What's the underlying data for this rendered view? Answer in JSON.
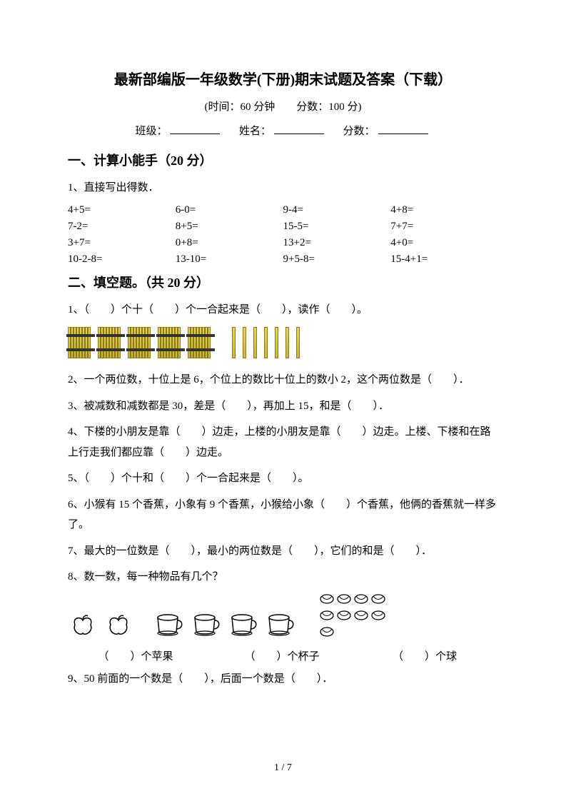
{
  "title": "最新部编版一年级数学(下册)期末试题及答案（下载）",
  "subtitle": "(时间：60 分钟　　分数：100 分)",
  "info": {
    "class_label": "班级：",
    "name_label": "姓名：",
    "score_label": "分数："
  },
  "section1": {
    "heading": "一、计算小能手（20 分）",
    "q1": "1、直接写出得数．",
    "rows": [
      [
        "4+5=",
        "6-0=",
        "9-4=",
        "4+8="
      ],
      [
        "7-2=",
        "8+5=",
        "15-5=",
        "7+7="
      ],
      [
        "3+7=",
        "0+8=",
        "13+2=",
        "4+0="
      ],
      [
        "10-2-8=",
        "13-10=",
        "9+5-8=",
        "15-4+1="
      ]
    ]
  },
  "section2": {
    "heading": "二、填空题。（共 20 分）",
    "q1": "1、（　　）个十（　　）个一合起来是（　　），读作（　　）。",
    "q2": "2、一个两位数，十位上是 6，个位上的数比十位上的数小 2，这个两位数是（　　）．",
    "q3": "3、被减数和减数都是 30，差是（　　），再加上 15，和是（　　）．",
    "q4": "4、下楼的小朋友是靠（　　）边走，上楼的小朋友是靠（　　）边走。上楼、下楼和在路上行走我们都应靠（　　）边走。",
    "q5": "5、（　　）个十和（　　）个一合起来是（　　）。",
    "q6": "6、小猴有 15 个香蕉，小象有 9 个香蕉，小猴给小象（　　）个香蕉，他俩的香蕉就一样多了。",
    "q7": "7、最大的一位数是（　　），最小的两位数是（　　），它们的和是（　　）．",
    "q8": "8、数一数，每一种物品有几个？",
    "q8_labels": {
      "a": "（　　）个苹果",
      "b": "（　　）个杯子",
      "c": "（　　）个球"
    },
    "q9": "9、50 前面的一个数是（　　），后面一个数是（　　）．"
  },
  "sticks": {
    "bundles": 5,
    "singles": 7,
    "stick_color": "#e8d84a",
    "stick_border": "#8a7a1a"
  },
  "items": {
    "apples": 2,
    "cups": 4,
    "balls": 9
  },
  "footer": "1 / 7"
}
